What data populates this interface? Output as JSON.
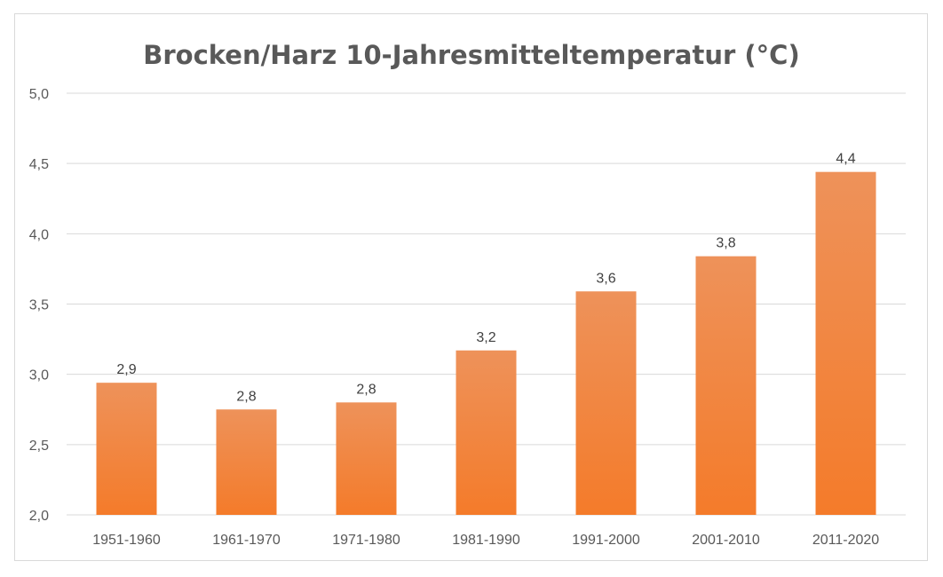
{
  "chart_data": {
    "type": "bar",
    "title": "Brocken/Harz 10-Jahresmitteltemperatur (°C)",
    "xlabel": "",
    "ylabel": "",
    "categories": [
      "1951-1960",
      "1961-1970",
      "1971-1980",
      "1981-1990",
      "1991-2000",
      "2001-2010",
      "2011-2020"
    ],
    "values": [
      2.94,
      2.75,
      2.8,
      3.17,
      3.59,
      3.84,
      4.44
    ],
    "data_labels": [
      "2,9",
      "2,8",
      "2,8",
      "3,2",
      "3,6",
      "3,8",
      "4,4"
    ],
    "ylim": [
      2.0,
      5.0
    ],
    "yticks": [
      2.0,
      2.5,
      3.0,
      3.5,
      4.0,
      4.5,
      5.0
    ],
    "ytick_labels": [
      "2,0",
      "2,5",
      "3,0",
      "3,5",
      "4,0",
      "4,5",
      "5,0"
    ],
    "grid": true,
    "legend": "none",
    "bar_color_top": "#ee925a",
    "bar_color_bottom": "#f47b2a"
  }
}
